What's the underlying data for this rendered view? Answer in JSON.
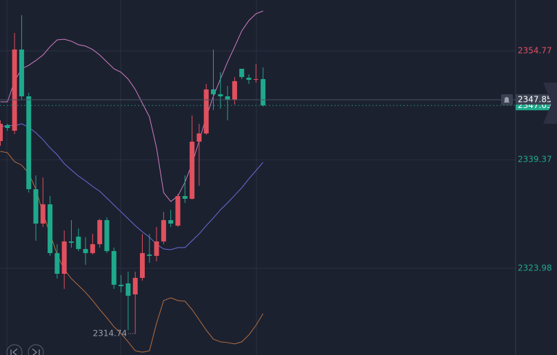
{
  "chart_data": {
    "type": "candlestick",
    "ylim": [
      2311.71,
      2361.98
    ],
    "yticks": [
      2323.98,
      2339.37,
      2354.77
    ],
    "up_color": "#e0505e",
    "down_color": "#1fa98c",
    "open": [
      2342.01,
      2344.25,
      2343.47,
      2354.97,
      2348.34,
      2335.19,
      2330.32,
      2333.05,
      2326.14,
      2323.21,
      2327.79,
      2328.47,
      2326.72,
      2326.14,
      2327.4,
      2330.81,
      2326.43,
      2321.66,
      2321.85,
      2320.29,
      2322.63,
      2325.94,
      2325.75,
      2327.79,
      2330.81,
      2330.03,
      2334.22,
      2333.83,
      2341.92,
      2343.08,
      2349.32,
      2348.64,
      2348.34,
      2347.86,
      2352.24,
      2350.97,
      2350.68,
      2350.78
    ],
    "high": [
      2344.93,
      2344.45,
      2357.3,
      2359.84,
      2348.83,
      2337.14,
      2336.85,
      2334.22,
      2327.4,
      2329.35,
      2330.81,
      2329.64,
      2328.38,
      2328.86,
      2331.01,
      2331.2,
      2326.92,
      2323.02,
      2323.51,
      2323.51,
      2328.86,
      2328.86,
      2329.84,
      2331.98,
      2332.27,
      2334.51,
      2337.14,
      2345.62,
      2344.45,
      2350.1,
      2354.97,
      2351.75,
      2349.8,
      2351.07,
      2352.24,
      2351.46,
      2352.92,
      2352.43
    ],
    "low": [
      2341.33,
      2343.47,
      2342.99,
      2347.86,
      2334.71,
      2327.89,
      2329.84,
      2325.75,
      2322.53,
      2321.07,
      2326.92,
      2326.43,
      2324.48,
      2325.94,
      2326.92,
      2326.14,
      2321.07,
      2320.58,
      2315.23,
      2314.74,
      2322.24,
      2324.77,
      2324.97,
      2327.4,
      2329.84,
      2329.84,
      2333.25,
      2333.73,
      2335.68,
      2342.89,
      2346.4,
      2346.59,
      2344.93,
      2347.18,
      2350.78,
      2350.1,
      2350.29,
      2346.88
    ],
    "close": [
      2344.45,
      2343.86,
      2354.97,
      2348.34,
      2335.19,
      2330.32,
      2333.05,
      2326.14,
      2323.21,
      2327.79,
      2327.6,
      2326.72,
      2326.14,
      2327.4,
      2330.81,
      2326.43,
      2321.66,
      2321.46,
      2320.1,
      2322.63,
      2326.14,
      2325.75,
      2327.79,
      2330.81,
      2330.32,
      2334.22,
      2333.83,
      2341.92,
      2343.08,
      2349.32,
      2348.64,
      2348.34,
      2347.86,
      2350.49,
      2351.07,
      2350.68,
      2350.78,
      2347.05
    ],
    "overlays": [
      {
        "color": "#d47fc4",
        "values": [
          2347.56,
          2347.56,
          2350.49,
          2352.24,
          2352.73,
          2353.41,
          2354.19,
          2355.36,
          2356.33,
          2356.43,
          2356.14,
          2355.65,
          2355.45,
          2354.97,
          2354.19,
          2353.21,
          2352.24,
          2351.75,
          2350.78,
          2349.32,
          2347.37,
          2345.42,
          2341.04,
          2334.71,
          2333.44,
          2334.22,
          2336.17,
          2338.8,
          2342.01,
          2345.42,
          2348.34,
          2350.78,
          2353.21,
          2355.36,
          2357.6,
          2359.06,
          2360.03,
          2360.42
        ]
      },
      {
        "color": "#6a70dc",
        "values": [
          2343.96,
          2344.25,
          2344.16,
          2344.45,
          2343.96,
          2343.18,
          2342.21,
          2341.04,
          2340.07,
          2338.8,
          2337.92,
          2337.05,
          2336.36,
          2335.58,
          2334.9,
          2333.93,
          2332.95,
          2331.98,
          2331.01,
          2330.03,
          2329.16,
          2328.38,
          2327.4,
          2326.72,
          2326.62,
          2326.92,
          2326.92,
          2327.89,
          2328.86,
          2330.03,
          2331.1,
          2332.27,
          2333.25,
          2334.32,
          2335.39,
          2336.66,
          2337.82,
          2338.99
        ]
      },
      {
        "color": "#b8703e",
        "values": [
          2340.55,
          2340.36,
          2339.09,
          2338.6,
          2337.44,
          2335.19,
          2331.79,
          2328.86,
          2325.94,
          2323.8,
          2322.53,
          2321.56,
          2320.58,
          2319.42,
          2318.15,
          2316.98,
          2315.71,
          2314.74,
          2313.57,
          2312.31,
          2312.11,
          2312.31,
          2316.2,
          2319.42,
          2319.81,
          2319.42,
          2319.32,
          2318.15,
          2316.69,
          2315.23,
          2313.96,
          2313.57,
          2313.47,
          2313.28,
          2313.57,
          2314.55,
          2315.91,
          2317.57
        ]
      }
    ],
    "price_line": 2347.85,
    "low_marker": 19
  }
}
